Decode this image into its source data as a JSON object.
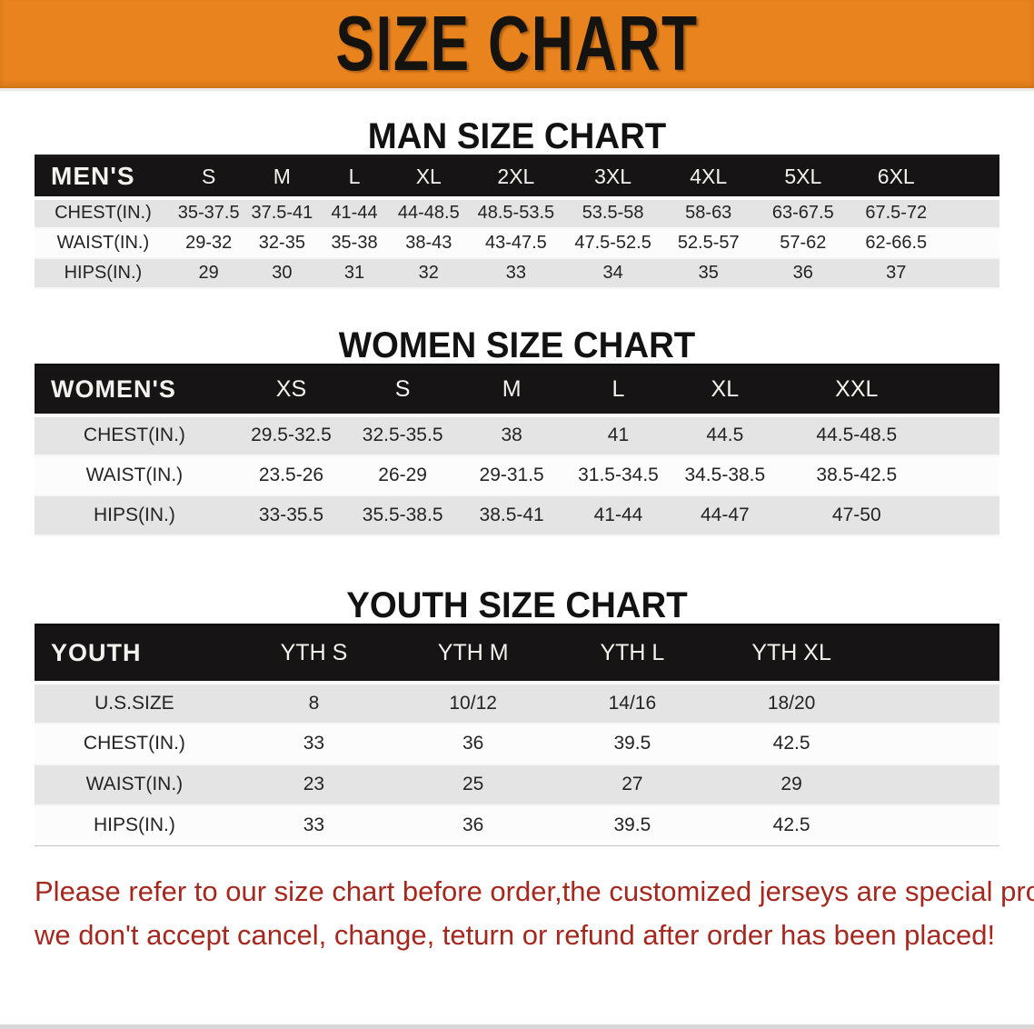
{
  "banner": {
    "title": "SIZE CHART"
  },
  "colors": {
    "banner-bg": "#E8831D",
    "bar-bg": "#161414",
    "row-gray": "#e5e4e4",
    "disclaimer": "#A5281F"
  },
  "sections": {
    "men": {
      "heading": "MAN SIZE CHART",
      "table": {
        "header": [
          "MEN'S",
          "S",
          "M",
          "L",
          "XL",
          "2XL",
          "3XL",
          "4XL",
          "5XL",
          "6XL"
        ],
        "rows": [
          [
            "CHEST(IN.)",
            "35-37.5",
            "37.5-41",
            "41-44",
            "44-48.5",
            "48.5-53.5",
            "53.5-58",
            "58-63",
            "63-67.5",
            "67.5-72"
          ],
          [
            "WAIST(IN.)",
            "29-32",
            "32-35",
            "35-38",
            "38-43",
            "43-47.5",
            "47.5-52.5",
            "52.5-57",
            "57-62",
            "62-66.5"
          ],
          [
            "HIPS(IN.)",
            "29",
            "30",
            "31",
            "32",
            "33",
            "34",
            "35",
            "36",
            "37"
          ]
        ]
      }
    },
    "women": {
      "heading": "WOMEN SIZE CHART",
      "table": {
        "header": [
          "WOMEN'S",
          "XS",
          "S",
          "M",
          "L",
          "XL",
          "XXL"
        ],
        "rows": [
          [
            "CHEST(IN.)",
            "29.5-32.5",
            "32.5-35.5",
            "38",
            "41",
            "44.5",
            "44.5-48.5"
          ],
          [
            "WAIST(IN.)",
            "23.5-26",
            "26-29",
            "29-31.5",
            "31.5-34.5",
            "34.5-38.5",
            "38.5-42.5"
          ],
          [
            "HIPS(IN.)",
            "33-35.5",
            "35.5-38.5",
            "38.5-41",
            "41-44",
            "44-47",
            "47-50"
          ]
        ]
      }
    },
    "youth": {
      "heading": "YOUTH SIZE CHART",
      "table": {
        "header": [
          "YOUTH",
          "YTH S",
          "YTH M",
          "YTH L",
          "YTH XL"
        ],
        "rows": [
          [
            "U.S.SIZE",
            "8",
            "10/12",
            "14/16",
            "18/20"
          ],
          [
            "CHEST(IN.)",
            "33",
            "36",
            "39.5",
            "42.5"
          ],
          [
            "WAIST(IN.)",
            "23",
            "25",
            "27",
            "29"
          ],
          [
            "HIPS(IN.)",
            "33",
            "36",
            "39.5",
            "42.5"
          ]
        ]
      }
    }
  },
  "disclaimer": {
    "line1": "Please refer to our size chart before order,the customized jerseys are special products,",
    "line2": "we don't accept cancel, change, teturn or refund after order has been placed!"
  }
}
